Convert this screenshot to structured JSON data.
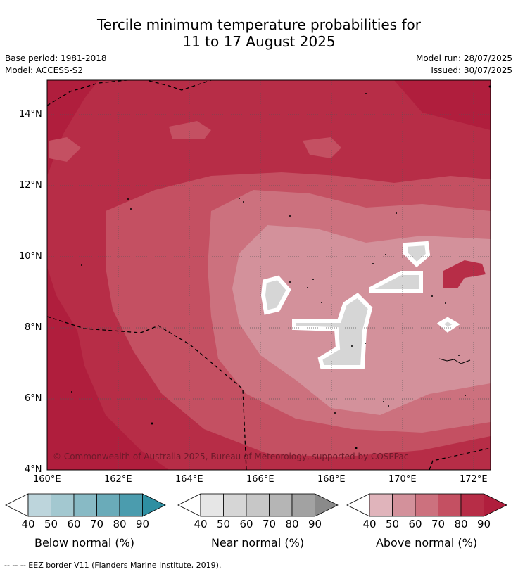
{
  "title": {
    "line1": "Tercile minimum temperature probabilities for",
    "line2": "11 to 17 August 2025"
  },
  "meta": {
    "base_period": "Base period: 1981-2018",
    "model": "Model: ACCESS-S2",
    "model_run": "Model run: 28/07/2025",
    "issued": "Issued: 30/07/2025"
  },
  "map": {
    "lat_ticks": [
      "14°N",
      "12°N",
      "10°N",
      "8°N",
      "6°N",
      "4°N"
    ],
    "lon_ticks": [
      "160°E",
      "162°E",
      "164°E",
      "166°E",
      "168°E",
      "170°E",
      "172°E"
    ],
    "copyright": "© Commonwealth of Australia 2025, Bureau of Meteorology, supported by COSPPac"
  },
  "colorbars": [
    {
      "label": "Below normal (%)",
      "ticks": [
        "40",
        "50",
        "60",
        "70",
        "80",
        "90"
      ],
      "colors": [
        "#bdd5dc",
        "#a3c8d0",
        "#88bac5",
        "#6aabb9",
        "#4b9cae",
        "#2e8fa2"
      ]
    },
    {
      "label": "Near normal (%)",
      "ticks": [
        "40",
        "50",
        "60",
        "70",
        "80",
        "90"
      ],
      "colors": [
        "#e6e6e6",
        "#d6d6d6",
        "#c7c7c7",
        "#b5b5b5",
        "#a2a2a2",
        "#8a8a8a"
      ]
    },
    {
      "label": "Above normal (%)",
      "ticks": [
        "40",
        "50",
        "60",
        "70",
        "80",
        "90"
      ],
      "colors": [
        "#e0b4bb",
        "#d3919b",
        "#cc717e",
        "#c45062",
        "#b72d47",
        "#b01e3d"
      ]
    }
  ],
  "legend_note": "--  --  -- EEZ border V11 (Flanders Marine Institute, 2019).",
  "colors": {
    "above_90": "#b01e3d",
    "above_80": "#b72d47",
    "above_70": "#c45062",
    "above_60": "#cc717e",
    "above_50": "#d3919b",
    "near_50": "#d6d6d6"
  }
}
